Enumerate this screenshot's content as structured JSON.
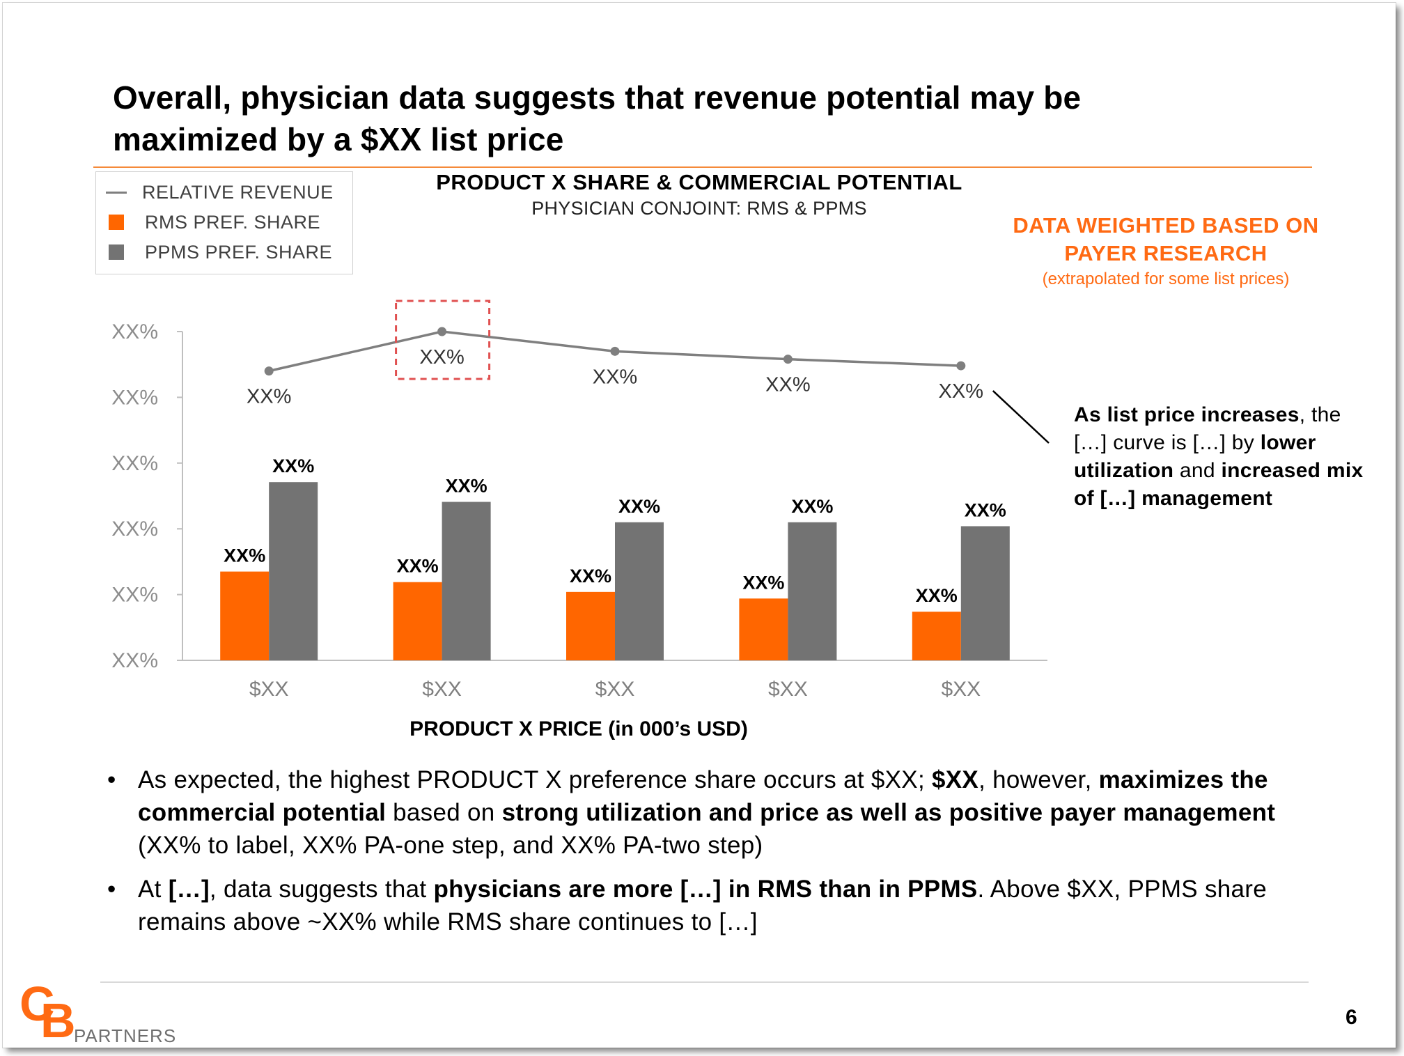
{
  "title": "Overall, physician data suggests that revenue potential may be maximized by a $XX list price",
  "legend": {
    "items": [
      {
        "label": "RELATIVE REVENUE",
        "kind": "line",
        "color": "#7f7f7f"
      },
      {
        "label": "RMS PREF. SHARE",
        "kind": "box",
        "color": "#ff6600"
      },
      {
        "label": "PPMS PREF. SHARE",
        "kind": "box",
        "color": "#737373"
      }
    ]
  },
  "note": {
    "line1": "DATA WEIGHTED BASED ON",
    "line2": "PAYER RESEARCH",
    "line3": "(extrapolated for some list prices)"
  },
  "callout": {
    "parts": [
      {
        "text": "As list price increases",
        "bold": true
      },
      {
        "text": ", the […] curve is […] by ",
        "bold": false
      },
      {
        "text": "lower utilization",
        "bold": true
      },
      {
        "text": " and ",
        "bold": false
      },
      {
        "text": "increased mix of […] management",
        "bold": true
      }
    ]
  },
  "chart_data": {
    "type": "bar",
    "title": "PRODUCT X SHARE & COMMERCIAL POTENTIAL",
    "subtitle": "PHYSICIAN CONJOINT: RMS & PPMS",
    "xlabel": "PRODUCT X PRICE (in 000’s USD)",
    "ylabel": "",
    "categories": [
      "$XX",
      "$XX",
      "$XX",
      "$XX",
      "$XX"
    ],
    "y_tick_labels": [
      "XX%",
      "XX%",
      "XX%",
      "XX%",
      "XX%",
      "XX%"
    ],
    "ylim": [
      0,
      50
    ],
    "grid": false,
    "legend_position": "top-left",
    "series": [
      {
        "name": "RMS PREF. SHARE",
        "type": "bar",
        "color": "#ff6600",
        "values": [
          13.5,
          11.9,
          10.4,
          9.4,
          7.4
        ],
        "data_labels": [
          "XX%",
          "XX%",
          "XX%",
          "XX%",
          "XX%"
        ]
      },
      {
        "name": "PPMS PREF. SHARE",
        "type": "bar",
        "color": "#737373",
        "values": [
          27.1,
          24.1,
          21.0,
          21.0,
          20.4
        ],
        "data_labels": [
          "XX%",
          "XX%",
          "XX%",
          "XX%",
          "XX%"
        ]
      },
      {
        "name": "RELATIVE REVENUE",
        "type": "line",
        "color": "#7f7f7f",
        "values": [
          44.0,
          50.0,
          47.0,
          45.8,
          44.8
        ],
        "data_labels": [
          "XX%",
          "XX%",
          "XX%",
          "XX%",
          "XX%"
        ]
      }
    ],
    "highlight_category_index": 1
  },
  "bullets": [
    {
      "parts": [
        {
          "text": "As expected, the highest PRODUCT X preference share occurs at $XX; ",
          "bold": false
        },
        {
          "text": "$XX",
          "bold": true
        },
        {
          "text": ", however, ",
          "bold": false
        },
        {
          "text": "maximizes the commercial potential",
          "bold": true
        },
        {
          "text": " based on ",
          "bold": false
        },
        {
          "text": "strong utilization and price as well as positive payer management",
          "bold": true
        },
        {
          "text": " (XX% to label, XX% PA-one step, and XX% PA-two step)",
          "bold": false
        }
      ]
    },
    {
      "parts": [
        {
          "text": "At ",
          "bold": false
        },
        {
          "text": "[…]",
          "bold": true
        },
        {
          "text": ", data suggests that ",
          "bold": false
        },
        {
          "text": "physicians are more […] in RMS than in PPMS",
          "bold": true
        },
        {
          "text": ". Above $XX, PPMS share remains above ~XX% while RMS share continues to […]",
          "bold": false
        }
      ]
    }
  ],
  "bullet_glyph": "•",
  "footer": {
    "logo_c": "C",
    "logo_b": "B",
    "logo_text": "PARTNERS",
    "page_number": "6"
  }
}
